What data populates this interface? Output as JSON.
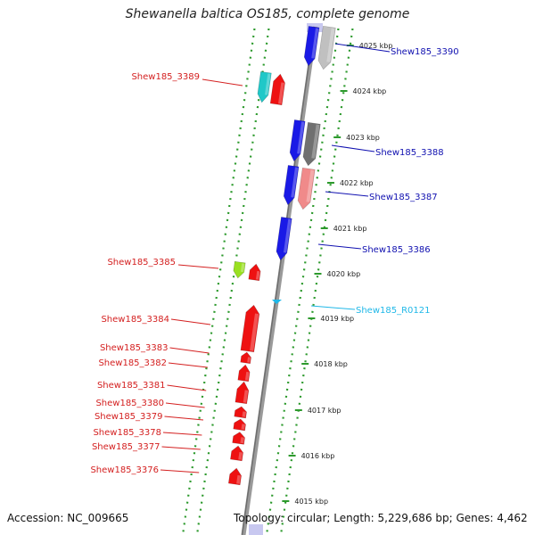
{
  "title": "Shewanella baltica OS185, complete genome",
  "accession": "Accession: NC_009665",
  "topology": "Topology: circular; Length: 5,229,686 bp; Genes: 4,462",
  "colors": {
    "backbone": "#888888",
    "frame_dots": "#2d9a2d",
    "label_red": "#d42020",
    "label_blue": "#1010b0",
    "label_cyan": "#20b8e8"
  },
  "ticks": [
    "4025 kbp",
    "4024 kbp",
    "4023 kbp",
    "4022 kbp",
    "4021 kbp",
    "4020 kbp",
    "4019 kbp",
    "4018 kbp",
    "4017 kbp",
    "4016 kbp",
    "4015 kbp"
  ],
  "genes": [
    {
      "label": "Shew185_3390",
      "strand": "+",
      "color": "#c0c0c0",
      "label_color": "#1010b0"
    },
    {
      "label": "Shew185_3389",
      "strand": "-",
      "color": "#20c8c8",
      "label_color": "#d42020"
    },
    {
      "label": "Shew185_3388",
      "strand": "+",
      "color": "#707070",
      "label_color": "#1010b0"
    },
    {
      "label": "Shew185_3387",
      "strand": "+",
      "color": "#f08a8a",
      "label_color": "#1010b0"
    },
    {
      "label": "Shew185_3386",
      "strand": "+",
      "color": "#1a1ae6",
      "label_color": "#1010b0"
    },
    {
      "label": "Shew185_3385",
      "strand": "-",
      "color": "#99e020",
      "label_color": "#d42020"
    },
    {
      "label": "Shew185_R0121",
      "strand": "+",
      "color": "#20b8e8",
      "label_color": "#20b8e8"
    },
    {
      "label": "Shew185_3384",
      "strand": "-",
      "color": "#ee1111",
      "label_color": "#d42020"
    },
    {
      "label": "Shew185_3383",
      "strand": "-",
      "color": "#ee1111",
      "label_color": "#d42020"
    },
    {
      "label": "Shew185_3382",
      "strand": "-",
      "color": "#ee1111",
      "label_color": "#d42020"
    },
    {
      "label": "Shew185_3381",
      "strand": "-",
      "color": "#ee1111",
      "label_color": "#d42020"
    },
    {
      "label": "Shew185_3380",
      "strand": "-",
      "color": "#ee1111",
      "label_color": "#d42020"
    },
    {
      "label": "Shew185_3379",
      "strand": "-",
      "color": "#ee1111",
      "label_color": "#d42020"
    },
    {
      "label": "Shew185_3378",
      "strand": "-",
      "color": "#ee1111",
      "label_color": "#d42020"
    },
    {
      "label": "Shew185_3377",
      "strand": "-",
      "color": "#ee1111",
      "label_color": "#d42020"
    },
    {
      "label": "Shew185_3376",
      "strand": "-",
      "color": "#ee1111",
      "label_color": "#d42020"
    }
  ]
}
